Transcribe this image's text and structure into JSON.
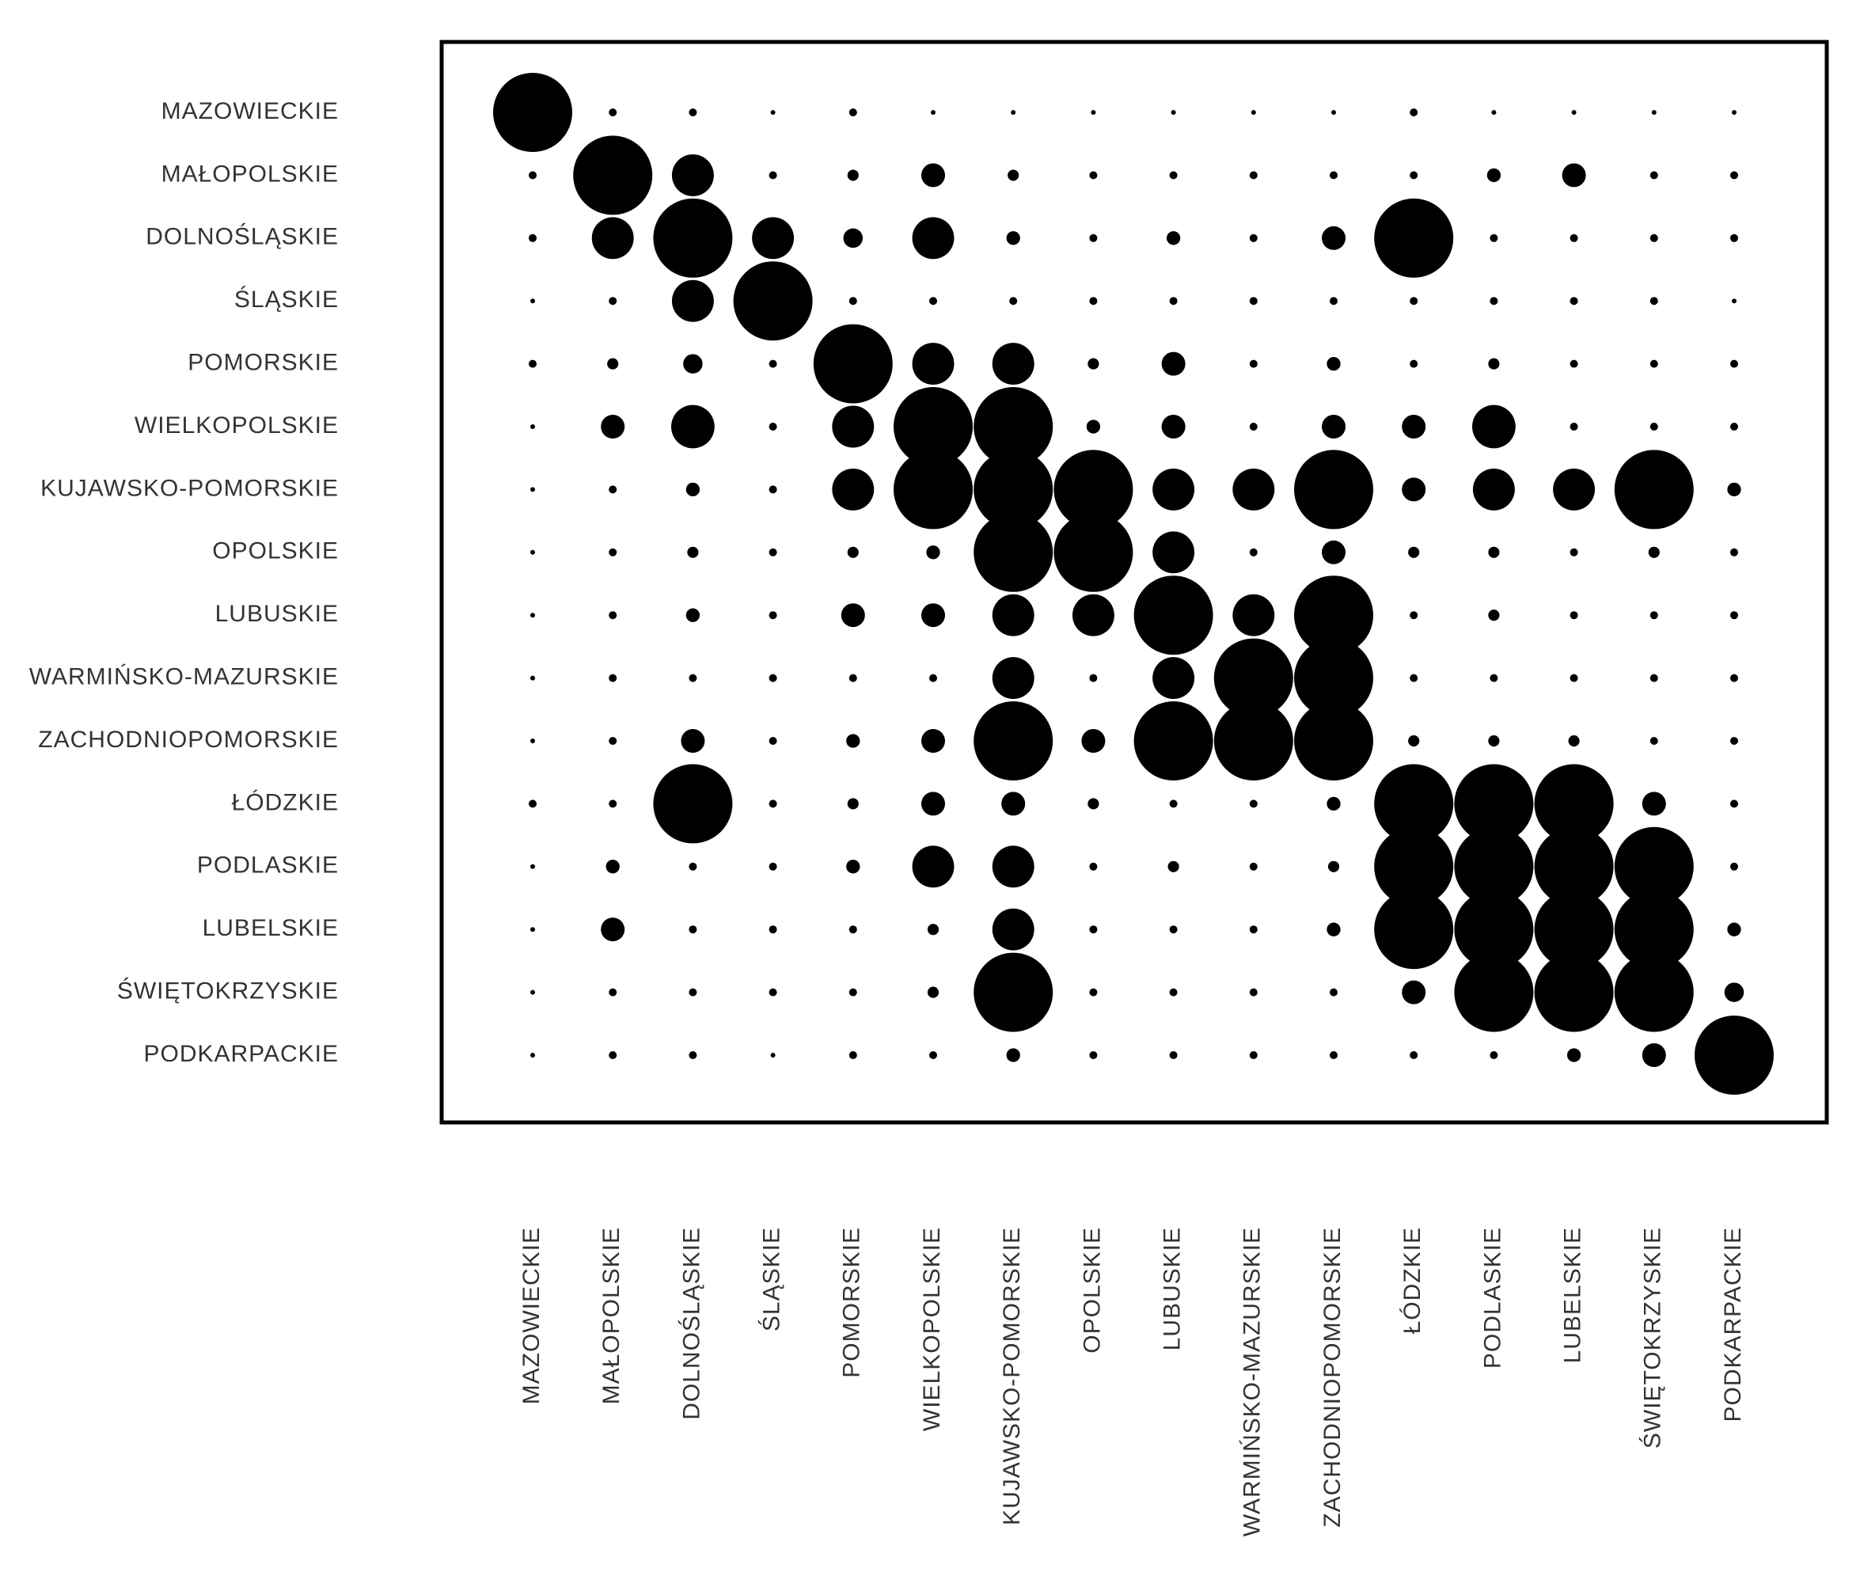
{
  "chart_data": {
    "type": "heatmap",
    "title": "",
    "xlabel": "",
    "ylabel": "",
    "grid": false,
    "legend": "none",
    "value_scale": "relative 0-1, shown as circle area",
    "mark_color": "#000000",
    "frame_color": "#000000",
    "rows": [
      "MAZOWIECKIE",
      "MAŁOPOLSKIE",
      "DOLNOŚLĄSKIE",
      "ŚLĄSKIE",
      "POMORSKIE",
      "WIELKOPOLSKIE",
      "KUJAWSKO-POMORSKIE",
      "OPOLSKIE",
      "LUBUSKIE",
      "WARMIŃSKO-MAZURSKIE",
      "ZACHODNIOPOMORSKIE",
      "ŁÓDZKIE",
      "PODLASKIE",
      "LUBELSKIE",
      "ŚWIĘTOKRZYSKIE",
      "PODKARPACKIE"
    ],
    "columns": [
      "MAZOWIECKIE",
      "MAŁOPOLSKIE",
      "DOLNOŚLĄSKIE",
      "ŚLĄSKIE",
      "POMORSKIE",
      "WIELKOPOLSKIE",
      "KUJAWSKO-POMORSKIE",
      "OPOLSKIE",
      "LUBUSKIE",
      "WARMIŃSKO-MAZURSKIE",
      "ZACHODNIOPOMORSKIE",
      "ŁÓDZKIE",
      "PODLASKIE",
      "LUBELSKIE",
      "ŚWIĘTOKRZYSKIE",
      "PODKARPACKIE"
    ],
    "values": [
      [
        1.0,
        0.01,
        0.01,
        0.0,
        0.01,
        0.0,
        0.0,
        0.0,
        0.0,
        0.0,
        0.0,
        0.01,
        0.0,
        0.0,
        0.0,
        0.0
      ],
      [
        0.01,
        1.0,
        0.28,
        0.01,
        0.02,
        0.09,
        0.02,
        0.01,
        0.01,
        0.01,
        0.01,
        0.01,
        0.03,
        0.09,
        0.01,
        0.01
      ],
      [
        0.01,
        0.28,
        1.0,
        0.28,
        0.06,
        0.28,
        0.03,
        0.01,
        0.03,
        0.01,
        0.09,
        1.0,
        0.01,
        0.01,
        0.01,
        0.01
      ],
      [
        0.0,
        0.01,
        0.28,
        1.0,
        0.01,
        0.01,
        0.01,
        0.01,
        0.01,
        0.01,
        0.01,
        0.01,
        0.01,
        0.01,
        0.01,
        0.0
      ],
      [
        0.01,
        0.02,
        0.06,
        0.01,
        1.0,
        0.28,
        0.28,
        0.02,
        0.09,
        0.01,
        0.03,
        0.01,
        0.02,
        0.01,
        0.01,
        0.01
      ],
      [
        0.0,
        0.09,
        0.3,
        0.01,
        0.28,
        1.0,
        1.0,
        0.03,
        0.09,
        0.01,
        0.09,
        0.09,
        0.3,
        0.01,
        0.01,
        0.01
      ],
      [
        0.0,
        0.01,
        0.03,
        0.01,
        0.28,
        1.0,
        1.0,
        1.0,
        0.28,
        0.28,
        1.0,
        0.09,
        0.28,
        0.28,
        1.0,
        0.03
      ],
      [
        0.0,
        0.01,
        0.02,
        0.01,
        0.02,
        0.03,
        1.0,
        1.0,
        0.28,
        0.01,
        0.09,
        0.02,
        0.02,
        0.01,
        0.02,
        0.01
      ],
      [
        0.0,
        0.01,
        0.03,
        0.01,
        0.09,
        0.09,
        0.28,
        0.28,
        1.0,
        0.28,
        1.0,
        0.01,
        0.02,
        0.01,
        0.01,
        0.01
      ],
      [
        0.0,
        0.01,
        0.01,
        0.01,
        0.01,
        0.01,
        0.28,
        0.01,
        0.28,
        1.0,
        1.0,
        0.01,
        0.01,
        0.01,
        0.01,
        0.01
      ],
      [
        0.0,
        0.01,
        0.09,
        0.01,
        0.03,
        0.09,
        1.0,
        0.09,
        1.0,
        1.0,
        1.0,
        0.02,
        0.02,
        0.02,
        0.01,
        0.01
      ],
      [
        0.01,
        0.01,
        1.0,
        0.01,
        0.02,
        0.09,
        0.09,
        0.02,
        0.01,
        0.01,
        0.03,
        1.0,
        1.0,
        1.0,
        0.09,
        0.01
      ],
      [
        0.0,
        0.03,
        0.01,
        0.01,
        0.03,
        0.28,
        0.28,
        0.01,
        0.02,
        0.01,
        0.02,
        1.0,
        1.0,
        1.0,
        1.0,
        0.01
      ],
      [
        0.0,
        0.09,
        0.01,
        0.01,
        0.01,
        0.02,
        0.28,
        0.01,
        0.01,
        0.01,
        0.03,
        1.0,
        1.0,
        1.0,
        1.0,
        0.03
      ],
      [
        0.0,
        0.01,
        0.01,
        0.01,
        0.01,
        0.02,
        1.0,
        0.01,
        0.01,
        0.01,
        0.01,
        0.09,
        1.0,
        1.0,
        1.0,
        0.06
      ],
      [
        0.0,
        0.01,
        0.01,
        0.0,
        0.01,
        0.01,
        0.03,
        0.01,
        0.01,
        0.01,
        0.01,
        0.01,
        0.01,
        0.03,
        0.09,
        1.0
      ]
    ]
  }
}
